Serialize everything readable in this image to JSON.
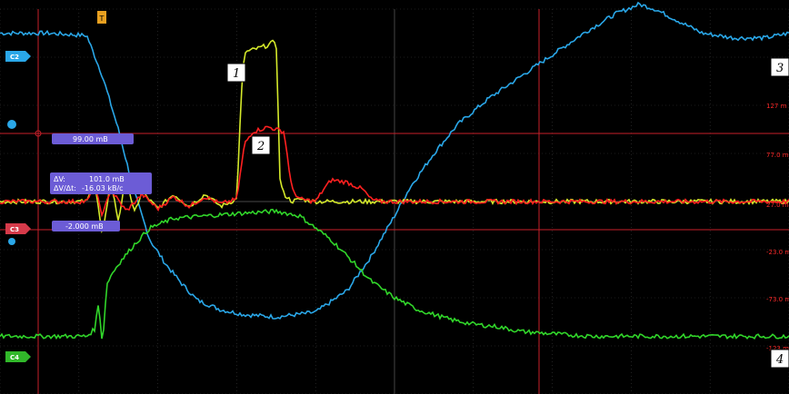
{
  "chart_data": {
    "type": "line",
    "title": "",
    "xlabel": "",
    "ylabel": "",
    "grid": true,
    "x_range": [
      0,
      100
    ],
    "y_range": [
      -8,
      8
    ],
    "series": [
      {
        "color": "#2aa7e8",
        "channel": "C2",
        "x": [
          0,
          6,
          11,
          13,
          15,
          17,
          19,
          21,
          23,
          25,
          28,
          31,
          35,
          40,
          44,
          47,
          50,
          52,
          55,
          58,
          62,
          66,
          70,
          74,
          78,
          81,
          83,
          86,
          89,
          93,
          97,
          100
        ],
        "y": [
          7.0,
          7.0,
          6.9,
          5.2,
          3.0,
          0.4,
          -1.6,
          -2.6,
          -3.4,
          -4.1,
          -4.5,
          -4.7,
          -4.8,
          -4.6,
          -3.7,
          -2.3,
          -0.6,
          0.6,
          2.0,
          3.2,
          4.3,
          5.2,
          6.1,
          7.0,
          7.8,
          8.2,
          8.0,
          7.5,
          7.0,
          6.8,
          6.8,
          7.0
        ]
      },
      {
        "color": "#d4e82a",
        "channel": "",
        "x": [
          0,
          11,
          12,
          13,
          14,
          15,
          16,
          17,
          18,
          20,
          22,
          24,
          26,
          28,
          30,
          30.6,
          31,
          32,
          34,
          35,
          35.5,
          36,
          37,
          38,
          40,
          45,
          50,
          60,
          70,
          80,
          90,
          100
        ],
        "y": [
          0,
          0,
          0.8,
          -1.5,
          0.9,
          -0.8,
          1.1,
          -0.5,
          0.4,
          -0.3,
          0.3,
          -0.2,
          0.3,
          -0.2,
          0.1,
          4.5,
          6.2,
          6.3,
          6.5,
          6.7,
          0.8,
          0.3,
          0,
          0.1,
          0,
          0,
          0,
          0,
          0,
          0,
          0,
          0
        ]
      },
      {
        "color": "#ff2020",
        "channel": "C3",
        "x": [
          0,
          11,
          12,
          13,
          14,
          16,
          18,
          20,
          22,
          24,
          26,
          28,
          30,
          31,
          32,
          34,
          36,
          37,
          38,
          40,
          41,
          42,
          44,
          46,
          47,
          48,
          55,
          60,
          70,
          80,
          90,
          100
        ],
        "y": [
          0,
          0,
          0.6,
          -0.6,
          0.5,
          -0.4,
          0.3,
          -0.3,
          0.2,
          -0.2,
          0.2,
          -0.1,
          0.1,
          2.4,
          2.9,
          3.1,
          2.9,
          0.5,
          0.1,
          0,
          0.5,
          0.9,
          0.8,
          0.5,
          0.1,
          0,
          0,
          0,
          0,
          0,
          0,
          0
        ]
      },
      {
        "color": "#31d62a",
        "channel": "C4",
        "x": [
          0,
          11,
          12,
          12.5,
          13,
          13.5,
          14,
          15,
          17,
          19,
          22,
          26,
          30,
          35,
          38,
          42,
          45,
          47,
          50,
          53,
          57,
          60,
          63,
          66,
          70,
          75,
          80,
          85,
          90,
          95,
          100
        ],
        "y": [
          -5.6,
          -5.6,
          -5.3,
          -4.2,
          -6.0,
          -3.5,
          -3.1,
          -2.6,
          -1.8,
          -1.1,
          -0.7,
          -0.6,
          -0.5,
          -0.4,
          -0.6,
          -1.6,
          -2.6,
          -3.3,
          -4.0,
          -4.5,
          -4.9,
          -5.1,
          -5.2,
          -5.4,
          -5.5,
          -5.6,
          -5.6,
          -5.6,
          -5.6,
          -5.6,
          -5.6
        ]
      }
    ],
    "callouts": [
      "1",
      "2",
      "3",
      "4"
    ],
    "channel_tabs": [
      "C2",
      "C3",
      "C4"
    ],
    "cursors": {
      "level": "99.00 mB",
      "delta_v_label": "ΔV:",
      "delta_v_value": "101.0 mB",
      "ratio_label": "ΔV/Δt:",
      "ratio_value": "-16.03 kB/c",
      "offset": "-2.000 mB"
    },
    "scale_labels": [
      "127 m",
      "77.0 m",
      "27.0 m",
      "-23.0 m",
      "-73.0 m",
      "-123 m"
    ]
  },
  "colors": {
    "background": "#000000",
    "grid": "#3a3a3a",
    "cursor": "#c8202a",
    "cursor_box": "#6c5cd6"
  }
}
